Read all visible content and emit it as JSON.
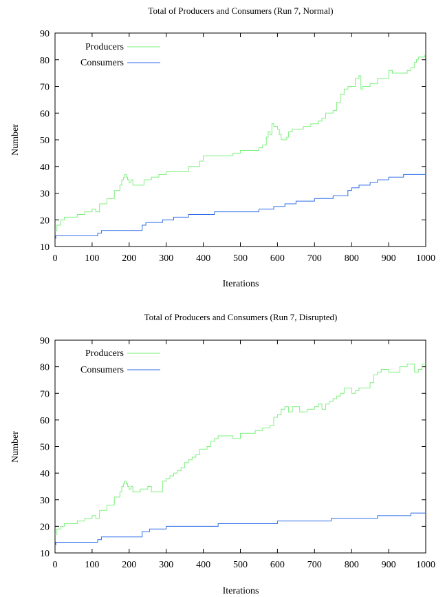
{
  "chart_data": [
    {
      "type": "line",
      "title": "Total of Producers and Consumers (Run 7, Normal)",
      "xlabel": "Iterations",
      "ylabel": "Number",
      "xlim": [
        0,
        1000
      ],
      "ylim": [
        10,
        90
      ],
      "xticks": [
        0,
        100,
        200,
        300,
        400,
        500,
        600,
        700,
        800,
        900,
        1000
      ],
      "yticks": [
        10,
        20,
        30,
        40,
        50,
        60,
        70,
        80,
        90
      ],
      "grid": false,
      "legend": "top-left",
      "series": [
        {
          "name": "Producers",
          "color": "#7ef07e",
          "step": true,
          "x": [
            0,
            5,
            15,
            25,
            40,
            60,
            80,
            100,
            110,
            120,
            140,
            160,
            175,
            180,
            185,
            188,
            192,
            196,
            200,
            205,
            210,
            220,
            240,
            260,
            280,
            300,
            320,
            360,
            390,
            400,
            430,
            480,
            500,
            520,
            550,
            560,
            570,
            575,
            580,
            585,
            590,
            595,
            600,
            605,
            610,
            620,
            625,
            630,
            640,
            650,
            670,
            690,
            710,
            720,
            730,
            750,
            760,
            770,
            780,
            790,
            810,
            820,
            825,
            830,
            850,
            870,
            880,
            890,
            900,
            910,
            930,
            950,
            960,
            970,
            975,
            980,
            990,
            998
          ],
          "y": [
            16,
            18,
            20,
            21,
            21,
            22,
            23,
            24,
            23,
            26,
            28,
            31,
            33,
            35,
            36,
            37,
            36,
            35,
            34,
            35,
            33,
            33,
            35,
            36,
            37,
            38,
            38,
            40,
            42,
            44,
            44,
            45,
            46,
            46,
            47,
            48,
            51,
            53,
            52,
            56,
            55,
            55,
            54,
            52,
            50,
            50,
            51,
            53,
            54,
            54,
            55,
            56,
            57,
            58,
            60,
            61,
            64,
            67,
            69,
            70,
            73,
            74,
            69,
            70,
            71,
            73,
            73,
            73,
            76,
            75,
            75,
            76,
            77,
            79,
            80,
            81,
            81,
            82
          ]
        },
        {
          "name": "Consumers",
          "color": "#2f6ee8",
          "step": true,
          "x": [
            0,
            2,
            115,
            125,
            235,
            245,
            260,
            290,
            320,
            360,
            430,
            510,
            550,
            590,
            620,
            650,
            700,
            750,
            790,
            800,
            820,
            850,
            870,
            900,
            940,
            1000
          ],
          "y": [
            13,
            14,
            15,
            16,
            18,
            19,
            19,
            20,
            21,
            22,
            23,
            23,
            24,
            25,
            26,
            27,
            28,
            29,
            31,
            32,
            33,
            34,
            35,
            36,
            37,
            37
          ]
        }
      ]
    },
    {
      "type": "line",
      "title": "Total of Producers and Consumers  (Run 7, Disrupted)",
      "xlabel": "Iterations",
      "ylabel": "Number",
      "xlim": [
        0,
        1000
      ],
      "ylim": [
        10,
        90
      ],
      "xticks": [
        0,
        100,
        200,
        300,
        400,
        500,
        600,
        700,
        800,
        900,
        1000
      ],
      "yticks": [
        10,
        20,
        30,
        40,
        50,
        60,
        70,
        80,
        90
      ],
      "grid": false,
      "legend": "top-left",
      "series": [
        {
          "name": "Producers",
          "color": "#7ef07e",
          "step": true,
          "x": [
            0,
            5,
            15,
            25,
            40,
            60,
            80,
            100,
            110,
            120,
            140,
            160,
            175,
            180,
            185,
            188,
            192,
            196,
            200,
            205,
            210,
            230,
            250,
            260,
            280,
            290,
            300,
            310,
            320,
            330,
            340,
            350,
            360,
            370,
            380,
            390,
            400,
            410,
            420,
            430,
            440,
            460,
            480,
            500,
            520,
            540,
            560,
            580,
            590,
            600,
            610,
            620,
            630,
            640,
            660,
            680,
            700,
            710,
            720,
            730,
            740,
            750,
            760,
            770,
            780,
            790,
            800,
            810,
            820,
            850,
            860,
            870,
            880,
            900,
            920,
            930,
            950,
            960,
            970,
            980,
            990
          ],
          "y": [
            17,
            19,
            20,
            21,
            21,
            22,
            23,
            24,
            23,
            26,
            28,
            31,
            33,
            35,
            36,
            37,
            36,
            35,
            34,
            35,
            33,
            34,
            35,
            33,
            33,
            37,
            38,
            39,
            40,
            41,
            42,
            44,
            45,
            46,
            47,
            49,
            49,
            50,
            52,
            53,
            54,
            54,
            53,
            55,
            55,
            56,
            57,
            58,
            61,
            62,
            64,
            65,
            63,
            65,
            63,
            64,
            65,
            66,
            64,
            66,
            67,
            68,
            69,
            70,
            72,
            72,
            70,
            71,
            72,
            74,
            77,
            78,
            79,
            78,
            78,
            80,
            81,
            81,
            78,
            79,
            81
          ]
        },
        {
          "name": "Consumers",
          "color": "#2f6ee8",
          "step": true,
          "x": [
            0,
            2,
            115,
            125,
            235,
            255,
            300,
            440,
            600,
            745,
            870,
            960,
            1000
          ],
          "y": [
            13,
            14,
            15,
            16,
            18,
            19,
            20,
            21,
            22,
            23,
            24,
            25,
            25
          ]
        }
      ]
    }
  ]
}
